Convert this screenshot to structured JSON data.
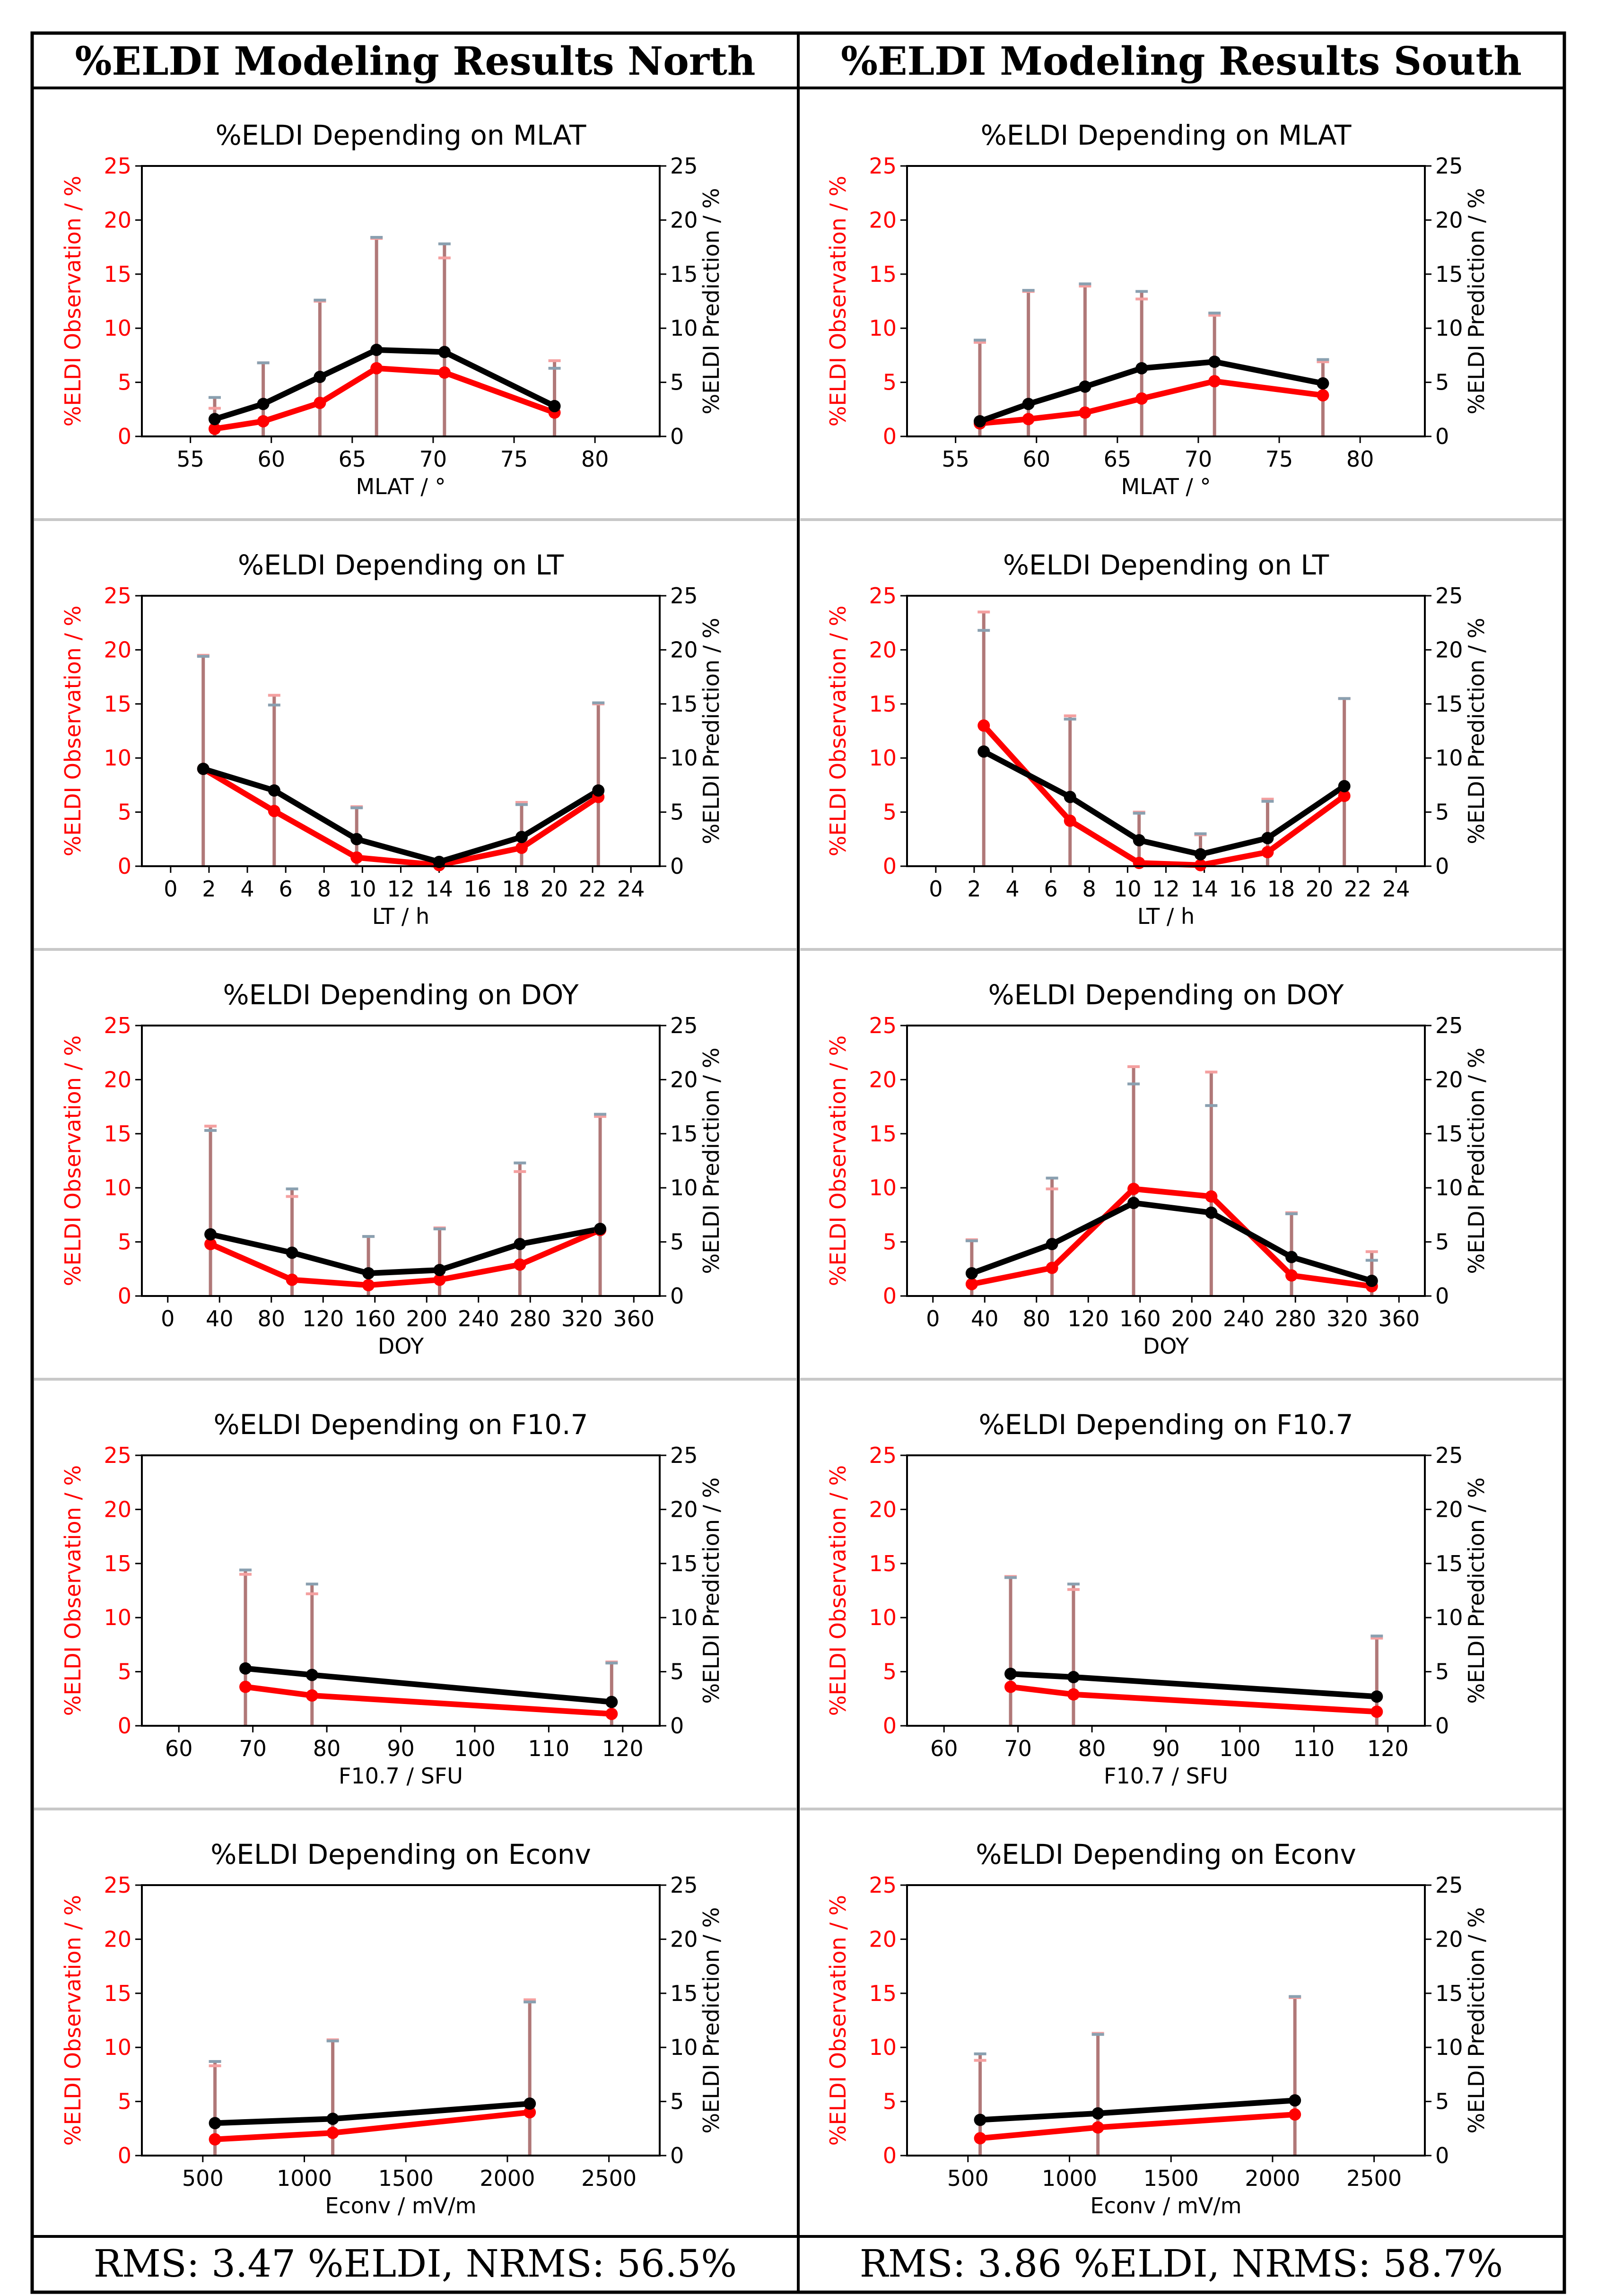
{
  "headers": {
    "north": "%ELDI Modeling Results North",
    "south": "%ELDI Modeling Results South"
  },
  "footers": {
    "north": "RMS: 3.47 %ELDI, NRMS: 56.5%",
    "south": "RMS: 3.86 %ELDI, NRMS: 58.7%"
  },
  "colors": {
    "observation": "#ff0000",
    "prediction": "#000000",
    "obs_err": "#f4a0a0",
    "pred_err": "#8aa0b0",
    "err_fill": "#b07878",
    "divider": "#c8c8c8"
  },
  "axis_labels": {
    "left": "%ELDI Observation / %",
    "right": "%ELDI Prediction / %"
  },
  "chart_data": [
    {
      "id": "north-mlat",
      "type": "line",
      "title": "%ELDI Depending on MLAT",
      "xlabel": "MLAT / °",
      "xlim": [
        52,
        84
      ],
      "xticks": [
        55,
        60,
        65,
        70,
        75,
        80
      ],
      "ylim": [
        0,
        25
      ],
      "yticks": [
        0,
        5,
        10,
        15,
        20,
        25
      ],
      "x": [
        56.5,
        59.5,
        63,
        66.5,
        70.7,
        77.5
      ],
      "observation": [
        0.7,
        1.4,
        3.1,
        6.3,
        5.9,
        2.2
      ],
      "obs_err_top": [
        2.6,
        6.8,
        12.5,
        18.3,
        16.5,
        7.0
      ],
      "prediction": [
        1.6,
        3.0,
        5.5,
        8.0,
        7.8,
        2.8
      ],
      "pred_err_top": [
        3.6,
        6.8,
        12.6,
        18.4,
        17.8,
        6.3
      ]
    },
    {
      "id": "south-mlat",
      "type": "line",
      "title": "%ELDI Depending on MLAT",
      "xlabel": "MLAT / °",
      "xlim": [
        52,
        84
      ],
      "xticks": [
        55,
        60,
        65,
        70,
        75,
        80
      ],
      "ylim": [
        0,
        25
      ],
      "yticks": [
        0,
        5,
        10,
        15,
        20,
        25
      ],
      "x": [
        56.5,
        59.5,
        63,
        66.5,
        71,
        77.7
      ],
      "observation": [
        1.2,
        1.6,
        2.2,
        3.5,
        5.1,
        3.8
      ],
      "obs_err_top": [
        8.7,
        13.4,
        13.9,
        12.7,
        11.2,
        6.9
      ],
      "prediction": [
        1.4,
        3.0,
        4.6,
        6.3,
        6.9,
        4.9
      ],
      "pred_err_top": [
        8.9,
        13.5,
        14.1,
        13.4,
        11.4,
        7.1
      ]
    },
    {
      "id": "north-lt",
      "type": "line",
      "title": "%ELDI Depending on LT",
      "xlabel": "LT / h",
      "xlim": [
        -1.5,
        25.5
      ],
      "xticks": [
        0,
        2,
        4,
        6,
        8,
        10,
        12,
        14,
        16,
        18,
        20,
        22,
        24
      ],
      "ylim": [
        0,
        25
      ],
      "yticks": [
        0,
        5,
        10,
        15,
        20,
        25
      ],
      "x": [
        1.7,
        5.4,
        9.7,
        14,
        18.3,
        22.3
      ],
      "observation": [
        9.0,
        5.1,
        0.8,
        0.1,
        1.7,
        6.4
      ],
      "obs_err_top": [
        19.5,
        15.8,
        5.5,
        0.5,
        5.9,
        15.0
      ],
      "prediction": [
        9.0,
        7.0,
        2.5,
        0.4,
        2.7,
        7.0
      ],
      "pred_err_top": [
        19.4,
        14.9,
        5.4,
        0.6,
        5.7,
        15.1
      ]
    },
    {
      "id": "south-lt",
      "type": "line",
      "title": "%ELDI Depending on LT",
      "xlabel": "LT / h",
      "xlim": [
        -1.5,
        25.5
      ],
      "xticks": [
        0,
        2,
        4,
        6,
        8,
        10,
        12,
        14,
        16,
        18,
        20,
        22,
        24
      ],
      "ylim": [
        0,
        25
      ],
      "yticks": [
        0,
        5,
        10,
        15,
        20,
        25
      ],
      "x": [
        2.5,
        7,
        10.6,
        13.8,
        17.3,
        21.3
      ],
      "observation": [
        13.0,
        4.2,
        0.3,
        0.1,
        1.3,
        6.5
      ],
      "obs_err_top": [
        23.5,
        13.9,
        5.0,
        2.9,
        6.2,
        15.5
      ],
      "prediction": [
        10.6,
        6.4,
        2.4,
        1.1,
        2.6,
        7.4
      ],
      "pred_err_top": [
        21.8,
        13.6,
        4.9,
        3.0,
        6.0,
        15.5
      ]
    },
    {
      "id": "north-doy",
      "type": "line",
      "title": "%ELDI Depending on DOY",
      "xlabel": "DOY",
      "xlim": [
        -20,
        380
      ],
      "xticks": [
        0,
        40,
        80,
        120,
        160,
        200,
        240,
        280,
        320,
        360
      ],
      "ylim": [
        0,
        25
      ],
      "yticks": [
        0,
        5,
        10,
        15,
        20,
        25
      ],
      "x": [
        33,
        96,
        155,
        210,
        272,
        334
      ],
      "observation": [
        4.8,
        1.5,
        1.0,
        1.5,
        2.9,
        6.1
      ],
      "obs_err_top": [
        15.7,
        9.2,
        5.5,
        6.3,
        11.5,
        16.6
      ],
      "prediction": [
        5.7,
        4.0,
        2.1,
        2.4,
        4.8,
        6.2
      ],
      "pred_err_top": [
        15.3,
        9.9,
        5.5,
        6.2,
        12.3,
        16.8
      ]
    },
    {
      "id": "south-doy",
      "type": "line",
      "title": "%ELDI Depending on DOY",
      "xlabel": "DOY",
      "xlim": [
        -20,
        380
      ],
      "xticks": [
        0,
        40,
        80,
        120,
        160,
        200,
        240,
        280,
        320,
        360
      ],
      "ylim": [
        0,
        25
      ],
      "yticks": [
        0,
        5,
        10,
        15,
        20,
        25
      ],
      "x": [
        30,
        92,
        155,
        215,
        277,
        339
      ],
      "observation": [
        1.1,
        2.6,
        9.9,
        9.2,
        1.9,
        0.9
      ],
      "obs_err_top": [
        5.2,
        9.9,
        21.2,
        20.7,
        7.7,
        4.1
      ],
      "prediction": [
        2.1,
        4.8,
        8.6,
        7.7,
        3.6,
        1.4
      ],
      "pred_err_top": [
        5.1,
        10.9,
        19.6,
        17.6,
        7.6,
        3.3
      ]
    },
    {
      "id": "north-f107",
      "type": "line",
      "title": "%ELDI Depending on F10.7",
      "xlabel": "F10.7 / SFU",
      "xlim": [
        55,
        125
      ],
      "xticks": [
        60,
        70,
        80,
        90,
        100,
        110,
        120
      ],
      "ylim": [
        0,
        25
      ],
      "yticks": [
        0,
        5,
        10,
        15,
        20,
        25
      ],
      "x": [
        69,
        78,
        118.5
      ],
      "observation": [
        3.6,
        2.8,
        1.1
      ],
      "obs_err_top": [
        14.0,
        12.2,
        5.9
      ],
      "prediction": [
        5.3,
        4.7,
        2.2
      ],
      "pred_err_top": [
        14.4,
        13.1,
        5.8
      ]
    },
    {
      "id": "south-f107",
      "type": "line",
      "title": "%ELDI Depending on F10.7",
      "xlabel": "F10.7 / SFU",
      "xlim": [
        55,
        125
      ],
      "xticks": [
        60,
        70,
        80,
        90,
        100,
        110,
        120
      ],
      "ylim": [
        0,
        25
      ],
      "yticks": [
        0,
        5,
        10,
        15,
        20,
        25
      ],
      "x": [
        69,
        77.5,
        118.5
      ],
      "observation": [
        3.6,
        2.9,
        1.3
      ],
      "obs_err_top": [
        13.8,
        12.6,
        8.1
      ],
      "prediction": [
        4.8,
        4.5,
        2.7
      ],
      "pred_err_top": [
        13.7,
        13.1,
        8.3
      ]
    },
    {
      "id": "north-econv",
      "type": "line",
      "title": "%ELDI Depending on Econv",
      "xlabel": "Econv / mV/m",
      "xlim": [
        200,
        2750
      ],
      "xticks": [
        500,
        1000,
        1500,
        2000,
        2500
      ],
      "ylim": [
        0,
        25
      ],
      "yticks": [
        0,
        5,
        10,
        15,
        20,
        25
      ],
      "x": [
        560,
        1140,
        2110
      ],
      "observation": [
        1.5,
        2.1,
        4.0
      ],
      "obs_err_top": [
        8.3,
        10.7,
        14.4
      ],
      "prediction": [
        3.0,
        3.4,
        4.8
      ],
      "pred_err_top": [
        8.7,
        10.6,
        14.2
      ]
    },
    {
      "id": "south-econv",
      "type": "line",
      "title": "%ELDI Depending on Econv",
      "xlabel": "Econv / mV/m",
      "xlim": [
        200,
        2750
      ],
      "xticks": [
        500,
        1000,
        1500,
        2000,
        2500
      ],
      "ylim": [
        0,
        25
      ],
      "yticks": [
        0,
        5,
        10,
        15,
        20,
        25
      ],
      "x": [
        560,
        1140,
        2110
      ],
      "observation": [
        1.6,
        2.6,
        3.8
      ],
      "obs_err_top": [
        8.8,
        11.3,
        14.6
      ],
      "prediction": [
        3.3,
        3.9,
        5.1
      ],
      "pred_err_top": [
        9.4,
        11.2,
        14.7
      ]
    }
  ]
}
